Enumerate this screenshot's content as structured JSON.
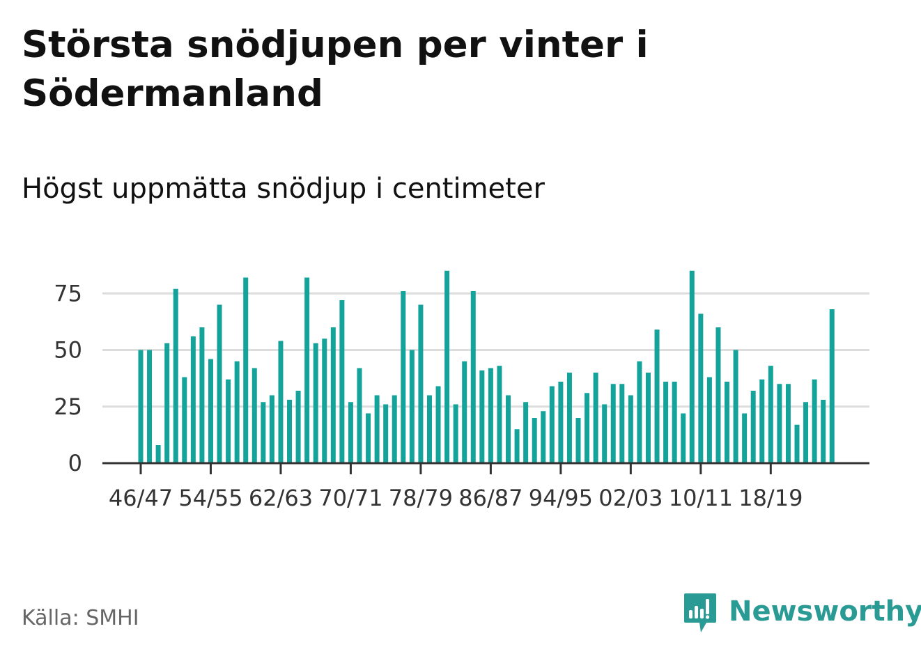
{
  "title": "Största snödjupen per vinter i Södermanland",
  "subtitle": "Högst uppmätta snödjup i centimeter",
  "source": "Källa: SMHI",
  "brand": {
    "name": "Newsworthy",
    "color": "#2a9a95",
    "icon": "bar-chart-speech-bubble-icon"
  },
  "colors": {
    "bar": "#13a39b",
    "grid": "#dddddd",
    "axis": "#333333"
  },
  "chart_data": {
    "type": "bar",
    "title": "Största snödjupen per vinter i Södermanland",
    "subtitle": "Högst uppmätta snödjup i centimeter",
    "xlabel": "",
    "ylabel": "",
    "ylim": [
      0,
      90
    ],
    "yticks": [
      0,
      25,
      50,
      75
    ],
    "grid": true,
    "legend": "none",
    "xtick_labels": [
      "46/47",
      "54/55",
      "62/63",
      "70/71",
      "78/79",
      "86/87",
      "94/95",
      "02/03",
      "10/11",
      "18/19"
    ],
    "categories": [
      "46/47",
      "47/48",
      "48/49",
      "49/50",
      "50/51",
      "51/52",
      "52/53",
      "53/54",
      "54/55",
      "55/56",
      "56/57",
      "57/58",
      "58/59",
      "59/60",
      "60/61",
      "61/62",
      "62/63",
      "63/64",
      "64/65",
      "65/66",
      "66/67",
      "67/68",
      "68/69",
      "69/70",
      "70/71",
      "71/72",
      "72/73",
      "73/74",
      "74/75",
      "75/76",
      "76/77",
      "77/78",
      "78/79",
      "79/80",
      "80/81",
      "81/82",
      "82/83",
      "83/84",
      "84/85",
      "85/86",
      "86/87",
      "87/88",
      "88/89",
      "89/90",
      "90/91",
      "91/92",
      "92/93",
      "93/94",
      "94/95",
      "95/96",
      "96/97",
      "97/98",
      "98/99",
      "99/00",
      "00/01",
      "01/02",
      "02/03",
      "03/04",
      "04/05",
      "05/06",
      "06/07",
      "07/08",
      "08/09",
      "09/10",
      "10/11",
      "11/12",
      "12/13",
      "13/14",
      "14/15",
      "15/16",
      "16/17",
      "17/18",
      "18/19",
      "19/20",
      "20/21",
      "21/22",
      "22/23",
      "23/24",
      "24/25",
      "25/26"
    ],
    "values": [
      50,
      50,
      8,
      53,
      77,
      38,
      56,
      60,
      46,
      70,
      37,
      45,
      82,
      42,
      27,
      30,
      54,
      28,
      32,
      82,
      53,
      55,
      60,
      72,
      27,
      42,
      22,
      30,
      26,
      30,
      76,
      50,
      70,
      30,
      34,
      85,
      26,
      45,
      76,
      41,
      42,
      43,
      30,
      15,
      27,
      20,
      23,
      34,
      36,
      40,
      20,
      31,
      40,
      26,
      35,
      35,
      30,
      45,
      40,
      59,
      36,
      36,
      22,
      85,
      66,
      38,
      60,
      36,
      50,
      22,
      32,
      37,
      43,
      35,
      35,
      17,
      27,
      37,
      28,
      68
    ]
  }
}
